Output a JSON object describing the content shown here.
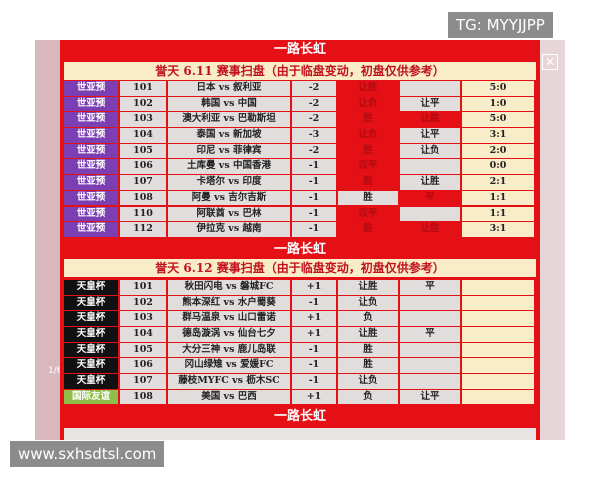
{
  "watermark_top": "TG: MYYJJPP",
  "watermark_bottom": "www.sxhsdtsl.com",
  "counter": "1/6",
  "close_icon": "close-icon",
  "banner": "一路长虹",
  "colors": {
    "poster_red": "#e50f16",
    "cream": "#f9ecc8",
    "purple": "#7b3fb3",
    "black": "#111111",
    "green": "#8fbf4a"
  },
  "tables": [
    {
      "header": "誉天  6.11  赛事扫盘（由于临盘变动，初盘仅供参考）",
      "cat_color": "#7b3fb3",
      "rows": [
        {
          "cat": "世亚预",
          "num": "101",
          "match": "日本 vs 叙利亚",
          "hcp": "-2",
          "r1": "让胜",
          "r1red": true,
          "r2": "",
          "r2red": false,
          "score": "5:0"
        },
        {
          "cat": "世亚预",
          "num": "102",
          "match": "韩国 vs 中国",
          "hcp": "-2",
          "r1": "让负",
          "r1red": true,
          "r2": "让平",
          "r2red": false,
          "score": "1:0"
        },
        {
          "cat": "世亚预",
          "num": "103",
          "match": "澳大利亚 vs 巴勒斯坦",
          "hcp": "-2",
          "r1": "胜",
          "r1red": true,
          "r2": "让胜",
          "r2red": true,
          "score": "5:0"
        },
        {
          "cat": "世亚预",
          "num": "104",
          "match": "泰国 vs 新加坡",
          "hcp": "-3",
          "r1": "让负",
          "r1red": true,
          "r2": "让平",
          "r2red": false,
          "score": "3:1"
        },
        {
          "cat": "世亚预",
          "num": "105",
          "match": "印尼 vs 菲律宾",
          "hcp": "-2",
          "r1": "胜",
          "r1red": true,
          "r2": "让负",
          "r2red": false,
          "score": "2:0"
        },
        {
          "cat": "世亚预",
          "num": "106",
          "match": "土库曼 vs 中国香港",
          "hcp": "-1",
          "r1": "双平",
          "r1red": true,
          "r2": "",
          "r2red": false,
          "score": "0:0"
        },
        {
          "cat": "世亚预",
          "num": "107",
          "match": "卡塔尔 vs 印度",
          "hcp": "-1",
          "r1": "胜",
          "r1red": true,
          "r2": "让胜",
          "r2red": false,
          "score": "2:1"
        },
        {
          "cat": "世亚预",
          "num": "108",
          "match": "阿曼 vs 吉尔吉斯",
          "hcp": "-1",
          "r1": "胜",
          "r1red": false,
          "r2": "平",
          "r2red": true,
          "score": "1:1"
        },
        {
          "cat": "世亚预",
          "num": "110",
          "match": "阿联酋 vs 巴林",
          "hcp": "-1",
          "r1": "双平",
          "r1red": true,
          "r2": "",
          "r2red": false,
          "score": "1:1"
        },
        {
          "cat": "世亚预",
          "num": "112",
          "match": "伊拉克 vs 越南",
          "hcp": "-1",
          "r1": "胜",
          "r1red": true,
          "r2": "让胜",
          "r2red": true,
          "score": "3:1"
        }
      ]
    },
    {
      "header": "誉天  6.12  赛事扫盘（由于临盘变动，初盘仅供参考）",
      "cat_color": "#111111",
      "rows": [
        {
          "cat": "天皇杯",
          "num": "101",
          "match": "秋田闪电 vs 磐城FC",
          "hcp": "+1",
          "r1": "让胜",
          "r2": "平",
          "score": ""
        },
        {
          "cat": "天皇杯",
          "num": "102",
          "match": "熊本深红 vs 水户蜀葵",
          "hcp": "-1",
          "r1": "让负",
          "r2": "",
          "score": ""
        },
        {
          "cat": "天皇杯",
          "num": "103",
          "match": "群马温泉 vs 山口雷诺",
          "hcp": "+1",
          "r1": "负",
          "r2": "",
          "score": ""
        },
        {
          "cat": "天皇杯",
          "num": "104",
          "match": "德岛漩涡 vs 仙台七夕",
          "hcp": "+1",
          "r1": "让胜",
          "r2": "平",
          "score": ""
        },
        {
          "cat": "天皇杯",
          "num": "105",
          "match": "大分三神 vs 鹿儿岛联",
          "hcp": "-1",
          "r1": "胜",
          "r2": "",
          "score": ""
        },
        {
          "cat": "天皇杯",
          "num": "106",
          "match": "冈山绿雉 vs 爱媛FC",
          "hcp": "-1",
          "r1": "胜",
          "r2": "",
          "score": ""
        },
        {
          "cat": "天皇杯",
          "num": "107",
          "match": "藤枝MYFC vs 枥木SC",
          "hcp": "-1",
          "r1": "让负",
          "r2": "",
          "score": ""
        },
        {
          "cat": "国际友谊",
          "num": "108",
          "match": "美国 vs 巴西",
          "hcp": "+1",
          "r1": "负",
          "r2": "让平",
          "score": "",
          "cat_color": "#8fbf4a"
        }
      ]
    }
  ]
}
